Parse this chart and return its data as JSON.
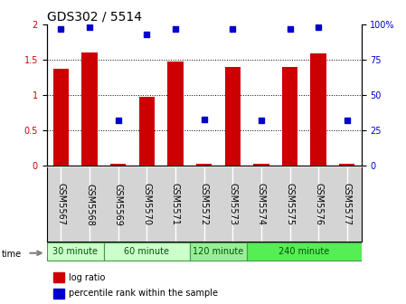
{
  "title": "GDS302 / 5514",
  "samples": [
    "GSM5567",
    "GSM5568",
    "GSM5569",
    "GSM5570",
    "GSM5571",
    "GSM5572",
    "GSM5573",
    "GSM5574",
    "GSM5575",
    "GSM5576",
    "GSM5577"
  ],
  "log_ratio": [
    1.37,
    1.6,
    0.03,
    0.98,
    1.48,
    0.03,
    1.4,
    0.03,
    1.4,
    1.59,
    0.03
  ],
  "percentile_rank": [
    97,
    98,
    32,
    93,
    97,
    33,
    97,
    32,
    97,
    98,
    32
  ],
  "groups": [
    {
      "label": "30 minute",
      "start": 0,
      "end": 2,
      "color": "#ccffcc"
    },
    {
      "label": "60 minute",
      "start": 2,
      "end": 5,
      "color": "#ccffcc"
    },
    {
      "label": "120 minute",
      "start": 5,
      "end": 7,
      "color": "#99ee99"
    },
    {
      "label": "240 minute",
      "start": 7,
      "end": 11,
      "color": "#55ee55"
    }
  ],
  "ylim_left": [
    0,
    2
  ],
  "ylim_right": [
    0,
    100
  ],
  "yticks_left": [
    0,
    0.5,
    1.0,
    1.5,
    2.0
  ],
  "ytick_labels_left": [
    "0",
    "0.5",
    "1",
    "1.5",
    "2"
  ],
  "yticks_right": [
    0,
    25,
    50,
    75,
    100
  ],
  "ytick_labels_right": [
    "0",
    "25",
    "50",
    "75",
    "100%"
  ],
  "bar_color": "#cc0000",
  "dot_color": "#0000cc",
  "sample_box_color": "#d4d4d4",
  "title_fontsize": 10,
  "tick_fontsize": 7,
  "label_fontsize": 7,
  "group_border_color": "#449944",
  "group_text_color": "#005500"
}
